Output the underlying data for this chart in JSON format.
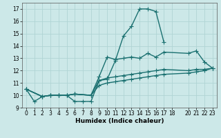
{
  "title": "",
  "xlabel": "Humidex (Indice chaleur)",
  "ylabel": "",
  "bg_color": "#cce8e8",
  "grid_color": "#b0d4d4",
  "line_color": "#1a7070",
  "marker": "+",
  "markersize": 4,
  "linewidth": 1.0,
  "xlim": [
    -0.5,
    23.5
  ],
  "ylim": [
    9,
    17.5
  ],
  "xticks": [
    0,
    1,
    2,
    3,
    4,
    5,
    6,
    7,
    8,
    9,
    10,
    11,
    12,
    13,
    14,
    15,
    16,
    17,
    18,
    20,
    21,
    22,
    23
  ],
  "yticks": [
    9,
    10,
    11,
    12,
    13,
    14,
    15,
    16,
    17
  ],
  "lines": [
    {
      "x": [
        0,
        1,
        2,
        3,
        4,
        5,
        6,
        7,
        8,
        9,
        10,
        11,
        12,
        13,
        14,
        15,
        16,
        17
      ],
      "y": [
        10.5,
        9.5,
        9.9,
        10.0,
        10.0,
        10.0,
        9.5,
        9.5,
        9.5,
        11.2,
        11.3,
        12.8,
        14.8,
        15.6,
        17.0,
        17.0,
        16.8,
        14.3
      ]
    },
    {
      "x": [
        0,
        2,
        3,
        4,
        5,
        6,
        8,
        9,
        10,
        11,
        12,
        13,
        14,
        15,
        16,
        17,
        20,
        21,
        22,
        23
      ],
      "y": [
        10.5,
        9.9,
        10.0,
        10.0,
        10.0,
        10.1,
        10.0,
        11.5,
        13.1,
        12.9,
        13.0,
        13.1,
        13.0,
        13.4,
        13.1,
        13.5,
        13.4,
        13.6,
        12.7,
        12.2
      ]
    },
    {
      "x": [
        0,
        2,
        3,
        4,
        5,
        6,
        8,
        9,
        10,
        11,
        12,
        13,
        14,
        15,
        16,
        17,
        20,
        21,
        22,
        23
      ],
      "y": [
        10.5,
        9.9,
        10.0,
        10.0,
        10.0,
        10.1,
        10.0,
        11.2,
        11.4,
        11.5,
        11.6,
        11.7,
        11.8,
        11.9,
        12.0,
        12.1,
        12.0,
        12.1,
        12.1,
        12.2
      ]
    },
    {
      "x": [
        0,
        2,
        3,
        4,
        5,
        6,
        8,
        9,
        10,
        11,
        12,
        13,
        14,
        15,
        16,
        17,
        20,
        21,
        22,
        23
      ],
      "y": [
        10.5,
        9.9,
        10.0,
        10.0,
        10.0,
        10.1,
        10.0,
        10.8,
        11.0,
        11.1,
        11.2,
        11.3,
        11.4,
        11.5,
        11.6,
        11.7,
        11.8,
        11.9,
        12.0,
        12.2
      ]
    }
  ]
}
